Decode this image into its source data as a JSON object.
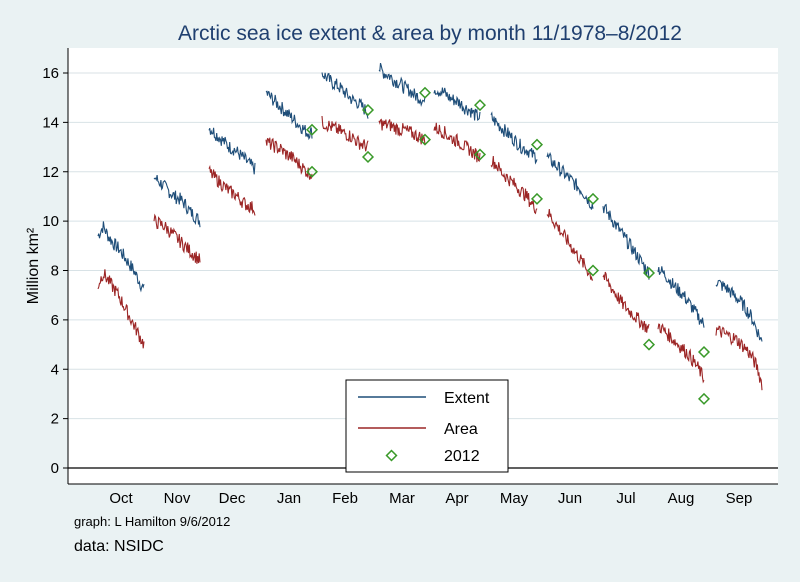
{
  "chart_data": {
    "type": "line",
    "title": "Arctic sea ice extent & area by month 11/1978–8/2012",
    "ylabel": "Million km²",
    "xlabel": "",
    "ylim": [
      -0.5,
      16.5
    ],
    "yticks": [
      "0",
      "2",
      "4",
      "6",
      "8",
      "10",
      "12",
      "14",
      "16"
    ],
    "categories": [
      "Oct",
      "Nov",
      "Dec",
      "Jan",
      "Feb",
      "Mar",
      "Apr",
      "May",
      "Jun",
      "Jul",
      "Aug",
      "Sep"
    ],
    "grid": "horizontal",
    "legend_position": "bottom-center",
    "colors": {
      "extent": "#1f4e79",
      "area": "#9c2626",
      "marker2012": "#3a9a2a"
    },
    "series": [
      {
        "name": "Extent",
        "style": "line",
        "months": [
          {
            "month": "Oct",
            "values": [
              9.4,
              9.8,
              9.4,
              9.1,
              8.9,
              8.6,
              8.3,
              8.0,
              7.6,
              7.2
            ]
          },
          {
            "month": "Nov",
            "values": [
              11.8,
              11.6,
              11.4,
              11.2,
              11.0,
              10.9,
              10.7,
              10.4,
              10.2,
              10.0
            ]
          },
          {
            "month": "Dec",
            "values": [
              13.8,
              13.6,
              13.4,
              13.2,
              13.0,
              12.9,
              12.7,
              12.5,
              12.3,
              12.1
            ]
          },
          {
            "month": "Jan",
            "values": [
              15.2,
              15.0,
              14.8,
              14.6,
              14.4,
              14.2,
              14.0,
              13.8,
              13.6,
              13.6
            ]
          },
          {
            "month": "Feb",
            "values": [
              16.0,
              15.8,
              15.6,
              15.5,
              15.3,
              15.1,
              14.9,
              14.8,
              14.6,
              14.4
            ]
          },
          {
            "month": "Mar",
            "values": [
              16.2,
              16.0,
              15.9,
              15.7,
              15.6,
              15.4,
              15.3,
              15.1,
              15.0,
              14.8
            ]
          },
          {
            "month": "Apr",
            "values": [
              15.4,
              15.3,
              15.2,
              15.0,
              14.9,
              14.8,
              14.6,
              14.5,
              14.3,
              14.2
            ]
          },
          {
            "month": "May",
            "values": [
              14.2,
              14.0,
              13.8,
              13.6,
              13.4,
              13.2,
              13.0,
              12.9,
              12.7,
              12.6
            ]
          },
          {
            "month": "Jun",
            "values": [
              12.6,
              12.4,
              12.2,
              12.0,
              11.8,
              11.6,
              11.4,
              11.2,
              10.9,
              10.6
            ]
          },
          {
            "month": "Jul",
            "values": [
              10.6,
              10.3,
              10.0,
              9.7,
              9.4,
              9.1,
              8.8,
              8.5,
              8.2,
              7.9
            ]
          },
          {
            "month": "Aug",
            "values": [
              8.1,
              7.9,
              7.7,
              7.4,
              7.2,
              7.0,
              6.7,
              6.4,
              6.1,
              5.8
            ]
          },
          {
            "month": "Sep",
            "values": [
              7.6,
              7.4,
              7.3,
              7.1,
              6.9,
              6.7,
              6.4,
              6.1,
              5.6,
              5.1
            ]
          }
        ]
      },
      {
        "name": "Area",
        "style": "line",
        "months": [
          {
            "month": "Oct",
            "values": [
              7.4,
              7.9,
              7.6,
              7.3,
              7.0,
              6.6,
              6.2,
              5.8,
              5.4,
              5.0
            ]
          },
          {
            "month": "Nov",
            "values": [
              10.0,
              9.9,
              9.8,
              9.6,
              9.4,
              9.2,
              9.0,
              8.8,
              8.6,
              8.4
            ]
          },
          {
            "month": "Dec",
            "values": [
              12.0,
              11.8,
              11.6,
              11.4,
              11.2,
              11.1,
              10.9,
              10.7,
              10.6,
              10.5
            ]
          },
          {
            "month": "Jan",
            "values": [
              13.2,
              13.1,
              13.0,
              12.9,
              12.7,
              12.6,
              12.4,
              12.2,
              12.0,
              11.9
            ]
          },
          {
            "month": "Feb",
            "values": [
              14.0,
              13.9,
              13.8,
              13.7,
              13.6,
              13.5,
              13.4,
              13.2,
              13.1,
              13.0
            ]
          },
          {
            "month": "Mar",
            "values": [
              14.0,
              13.9,
              13.9,
              13.8,
              13.7,
              13.7,
              13.6,
              13.5,
              13.4,
              13.3
            ]
          },
          {
            "month": "Apr",
            "values": [
              13.8,
              13.7,
              13.6,
              13.4,
              13.3,
              13.2,
              13.0,
              12.9,
              12.7,
              12.6
            ]
          },
          {
            "month": "May",
            "values": [
              12.5,
              12.3,
              12.0,
              11.8,
              11.6,
              11.4,
              11.2,
              11.0,
              10.7,
              10.5
            ]
          },
          {
            "month": "Jun",
            "values": [
              10.4,
              10.1,
              9.8,
              9.5,
              9.2,
              8.9,
              8.6,
              8.3,
              8.0,
              7.7
            ]
          },
          {
            "month": "Jul",
            "values": [
              7.8,
              7.5,
              7.2,
              6.9,
              6.6,
              6.4,
              6.2,
              6.0,
              5.8,
              5.6
            ]
          },
          {
            "month": "Aug",
            "values": [
              5.8,
              5.6,
              5.4,
              5.2,
              5.0,
              4.8,
              4.6,
              4.3,
              4.0,
              3.6
            ]
          },
          {
            "month": "Sep",
            "values": [
              5.6,
              5.5,
              5.4,
              5.3,
              5.2,
              5.0,
              4.8,
              4.5,
              4.1,
              3.4
            ]
          }
        ]
      },
      {
        "name": "2012",
        "style": "marker",
        "points": [
          {
            "month": "Jan",
            "extent": 13.7,
            "area": 12.0
          },
          {
            "month": "Feb",
            "extent": 14.5,
            "area": 12.6
          },
          {
            "month": "Mar",
            "extent": 15.2,
            "area": 13.3
          },
          {
            "month": "Apr",
            "extent": 14.7,
            "area": 12.7
          },
          {
            "month": "May",
            "extent": 13.1,
            "area": 10.9
          },
          {
            "month": "Jun",
            "extent": 10.9,
            "area": 8.0
          },
          {
            "month": "Jul",
            "extent": 7.9,
            "area": 5.0
          },
          {
            "month": "Aug",
            "extent": 4.7,
            "area": 2.8
          }
        ]
      }
    ],
    "legend": [
      "Extent",
      "Area",
      "2012"
    ]
  },
  "notes": {
    "graph_credit": "graph:  L Hamilton 9/6/2012",
    "data_credit": "data:  NSIDC"
  }
}
